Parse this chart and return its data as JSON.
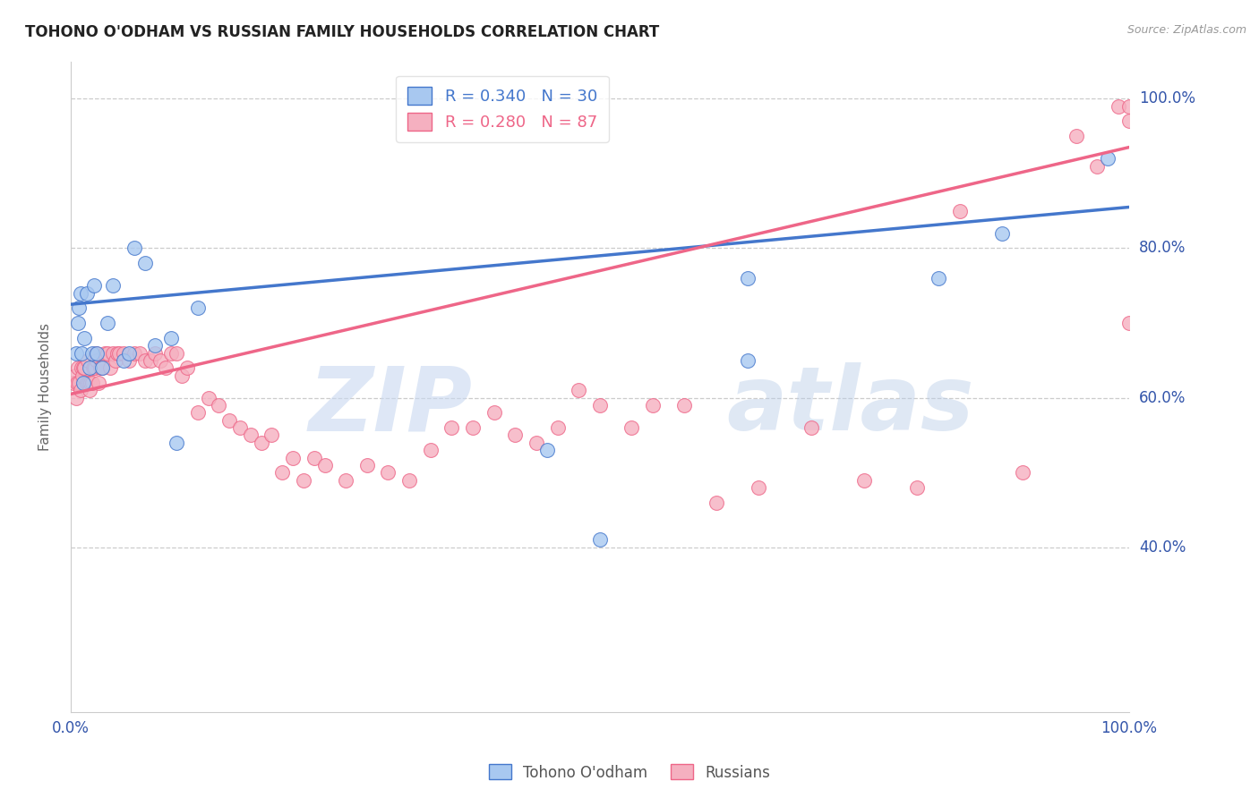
{
  "title": "TOHONO O'ODHAM VS RUSSIAN FAMILY HOUSEHOLDS CORRELATION CHART",
  "source": "Source: ZipAtlas.com",
  "ylabel": "Family Households",
  "blue_R": 0.34,
  "blue_N": 30,
  "pink_R": 0.28,
  "pink_N": 87,
  "blue_color": "#A8C8F0",
  "pink_color": "#F5B0C0",
  "blue_line_color": "#4477CC",
  "pink_line_color": "#EE6688",
  "watermark_zip": "ZIP",
  "watermark_atlas": "atlas",
  "blue_line_x0": 0.0,
  "blue_line_y0": 0.725,
  "blue_line_x1": 1.0,
  "blue_line_y1": 0.855,
  "pink_line_x0": 0.0,
  "pink_line_y0": 0.605,
  "pink_line_x1": 1.0,
  "pink_line_y1": 0.935,
  "xlim": [
    0.0,
    1.0
  ],
  "ylim": [
    0.18,
    1.05
  ],
  "ytick_values": [
    0.4,
    0.6,
    0.8,
    1.0
  ],
  "ytick_labels": [
    "40.0%",
    "60.0%",
    "80.0%",
    "100.0%"
  ],
  "blue_x": [
    0.005,
    0.007,
    0.008,
    0.009,
    0.01,
    0.012,
    0.013,
    0.015,
    0.018,
    0.02,
    0.022,
    0.025,
    0.03,
    0.035,
    0.04,
    0.05,
    0.055,
    0.06,
    0.07,
    0.08,
    0.095,
    0.1,
    0.12,
    0.45,
    0.5,
    0.64,
    0.64,
    0.82,
    0.88,
    0.98
  ],
  "blue_y": [
    0.66,
    0.7,
    0.72,
    0.74,
    0.66,
    0.62,
    0.68,
    0.74,
    0.64,
    0.66,
    0.75,
    0.66,
    0.64,
    0.7,
    0.75,
    0.65,
    0.66,
    0.8,
    0.78,
    0.67,
    0.68,
    0.54,
    0.72,
    0.53,
    0.41,
    0.65,
    0.76,
    0.76,
    0.82,
    0.92
  ],
  "pink_x": [
    0.003,
    0.004,
    0.005,
    0.006,
    0.007,
    0.008,
    0.009,
    0.01,
    0.011,
    0.012,
    0.013,
    0.015,
    0.016,
    0.017,
    0.018,
    0.019,
    0.02,
    0.021,
    0.022,
    0.023,
    0.024,
    0.025,
    0.026,
    0.028,
    0.03,
    0.032,
    0.035,
    0.037,
    0.04,
    0.042,
    0.044,
    0.046,
    0.05,
    0.055,
    0.06,
    0.065,
    0.07,
    0.075,
    0.08,
    0.085,
    0.09,
    0.095,
    0.1,
    0.105,
    0.11,
    0.12,
    0.13,
    0.14,
    0.15,
    0.16,
    0.17,
    0.18,
    0.19,
    0.2,
    0.21,
    0.22,
    0.23,
    0.24,
    0.26,
    0.28,
    0.3,
    0.32,
    0.34,
    0.36,
    0.38,
    0.4,
    0.42,
    0.44,
    0.46,
    0.48,
    0.5,
    0.53,
    0.55,
    0.58,
    0.61,
    0.65,
    0.7,
    0.75,
    0.8,
    0.84,
    0.9,
    0.95,
    0.97,
    0.99,
    1.0,
    1.0,
    1.0
  ],
  "pink_y": [
    0.62,
    0.63,
    0.6,
    0.62,
    0.64,
    0.62,
    0.61,
    0.64,
    0.63,
    0.64,
    0.64,
    0.62,
    0.65,
    0.62,
    0.61,
    0.62,
    0.62,
    0.64,
    0.64,
    0.64,
    0.66,
    0.65,
    0.62,
    0.64,
    0.64,
    0.66,
    0.66,
    0.64,
    0.66,
    0.65,
    0.66,
    0.66,
    0.66,
    0.65,
    0.66,
    0.66,
    0.65,
    0.65,
    0.66,
    0.65,
    0.64,
    0.66,
    0.66,
    0.63,
    0.64,
    0.58,
    0.6,
    0.59,
    0.57,
    0.56,
    0.55,
    0.54,
    0.55,
    0.5,
    0.52,
    0.49,
    0.52,
    0.51,
    0.49,
    0.51,
    0.5,
    0.49,
    0.53,
    0.56,
    0.56,
    0.58,
    0.55,
    0.54,
    0.56,
    0.61,
    0.59,
    0.56,
    0.59,
    0.59,
    0.46,
    0.48,
    0.56,
    0.49,
    0.48,
    0.85,
    0.5,
    0.95,
    0.91,
    0.99,
    0.97,
    0.7,
    0.99
  ]
}
